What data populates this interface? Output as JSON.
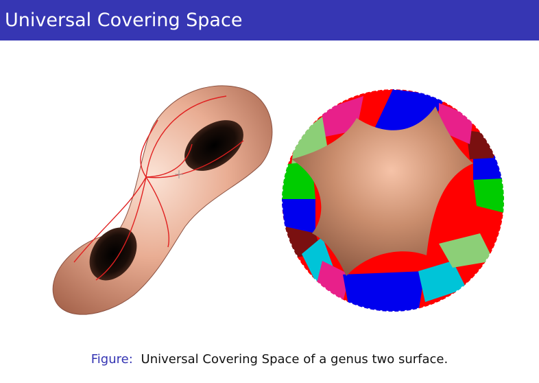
{
  "slide": {
    "title": "Universal Covering Space"
  },
  "figure": {
    "caption_label": "Figure:",
    "caption_text": "Universal Covering Space of a genus two surface."
  },
  "colors": {
    "title_bar": "#3636b3",
    "title_text": "#ffffff",
    "caption_label": "#3333b2",
    "surface": "#e6a58b",
    "fundamental_domain": "#c9906f",
    "curves": "#e02020",
    "tiles": [
      "#ff0000",
      "#0000ee",
      "#00cc00",
      "#e8208a",
      "#00c4d8",
      "#8ccf77",
      "#7a1010"
    ]
  }
}
